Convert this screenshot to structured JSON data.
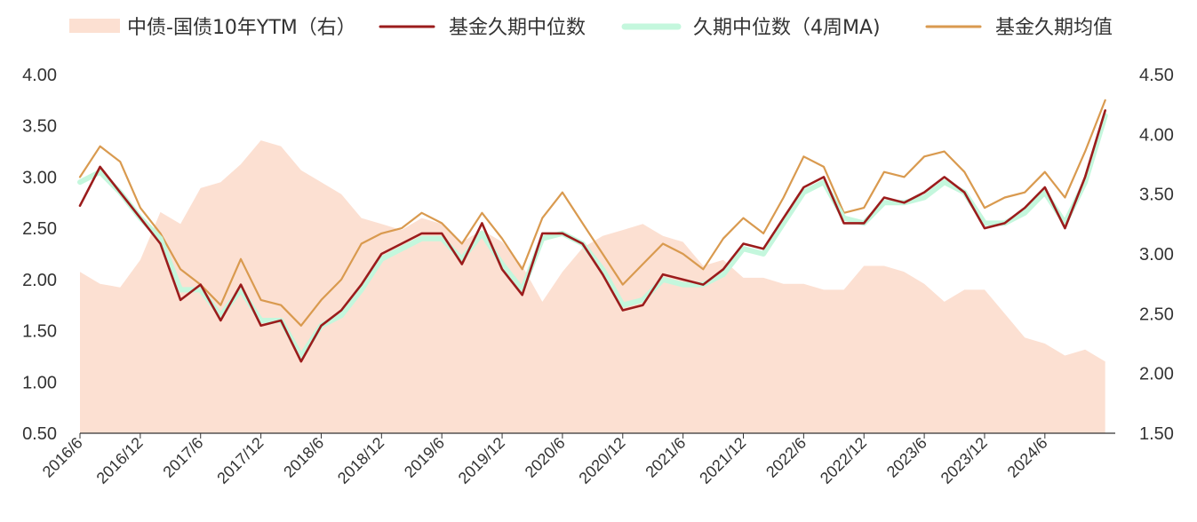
{
  "chart_data": {
    "type": "line",
    "title": "",
    "xlabel": "",
    "ylabel_left": "",
    "ylabel_right": "",
    "ylim_left": [
      0.5,
      4.0
    ],
    "ylim_right": [
      1.5,
      4.5
    ],
    "yticks_left": [
      "4.00",
      "3.50",
      "3.00",
      "2.50",
      "2.00",
      "1.50",
      "1.00",
      "0.50"
    ],
    "yticks_right": [
      "4.50",
      "4.00",
      "3.50",
      "3.00",
      "2.50",
      "2.00",
      "1.50"
    ],
    "x_categories": [
      "2016/6",
      "2016/12",
      "2017/6",
      "2017/12",
      "2018/6",
      "2018/12",
      "2019/6",
      "2019/12",
      "2020/6",
      "2020/12",
      "2021/6",
      "2021/12",
      "2022/6",
      "2022/12",
      "2023/6",
      "2023/12",
      "2024/6"
    ],
    "x_range": [
      "2016/6",
      "2025/1"
    ],
    "legend_position": "top",
    "grid": false,
    "series": [
      {
        "name": "中债-国债10年YTM（右）",
        "kind": "area",
        "axis": "right",
        "color": "#fce0d2",
        "x": [
          "2016/6",
          "2016/8",
          "2016/10",
          "2016/12",
          "2017/2",
          "2017/4",
          "2017/6",
          "2017/8",
          "2017/10",
          "2017/12",
          "2018/2",
          "2018/4",
          "2018/6",
          "2018/8",
          "2018/10",
          "2018/12",
          "2019/2",
          "2019/4",
          "2019/6",
          "2019/8",
          "2019/10",
          "2019/12",
          "2020/2",
          "2020/4",
          "2020/6",
          "2020/8",
          "2020/10",
          "2020/12",
          "2021/2",
          "2021/4",
          "2021/6",
          "2021/8",
          "2021/10",
          "2021/12",
          "2022/2",
          "2022/4",
          "2022/6",
          "2022/8",
          "2022/10",
          "2022/12",
          "2023/2",
          "2023/4",
          "2023/6",
          "2023/8",
          "2023/10",
          "2023/12",
          "2024/2",
          "2024/4",
          "2024/6",
          "2024/8",
          "2024/10",
          "2024/12"
        ],
        "values": [
          2.85,
          2.75,
          2.72,
          2.95,
          3.35,
          3.25,
          3.55,
          3.6,
          3.75,
          3.95,
          3.9,
          3.7,
          3.6,
          3.5,
          3.3,
          3.25,
          3.2,
          3.3,
          3.25,
          3.1,
          3.2,
          3.1,
          2.9,
          2.6,
          2.85,
          3.05,
          3.15,
          3.2,
          3.25,
          3.15,
          3.1,
          2.9,
          2.95,
          2.8,
          2.8,
          2.75,
          2.75,
          2.7,
          2.7,
          2.9,
          2.9,
          2.85,
          2.75,
          2.6,
          2.7,
          2.7,
          2.5,
          2.3,
          2.25,
          2.15,
          2.2,
          2.1
        ]
      },
      {
        "name": "基金久期中位数",
        "kind": "line",
        "axis": "left",
        "color": "#9b1c1c",
        "x": [
          "2016/6",
          "2016/8",
          "2016/10",
          "2016/12",
          "2017/2",
          "2017/4",
          "2017/6",
          "2017/8",
          "2017/10",
          "2017/12",
          "2018/2",
          "2018/4",
          "2018/6",
          "2018/8",
          "2018/10",
          "2018/12",
          "2019/2",
          "2019/4",
          "2019/6",
          "2019/8",
          "2019/10",
          "2019/12",
          "2020/2",
          "2020/4",
          "2020/6",
          "2020/8",
          "2020/10",
          "2020/12",
          "2021/2",
          "2021/4",
          "2021/6",
          "2021/8",
          "2021/10",
          "2021/12",
          "2022/2",
          "2022/4",
          "2022/6",
          "2022/8",
          "2022/10",
          "2022/12",
          "2023/2",
          "2023/4",
          "2023/6",
          "2023/8",
          "2023/10",
          "2023/12",
          "2024/2",
          "2024/4",
          "2024/6",
          "2024/8",
          "2024/10",
          "2024/12"
        ],
        "values": [
          2.72,
          3.1,
          2.85,
          2.6,
          2.35,
          1.8,
          1.95,
          1.6,
          1.95,
          1.55,
          1.6,
          1.2,
          1.55,
          1.7,
          1.95,
          2.25,
          2.35,
          2.45,
          2.45,
          2.15,
          2.55,
          2.1,
          1.85,
          2.45,
          2.45,
          2.35,
          2.05,
          1.7,
          1.75,
          2.05,
          2.0,
          1.95,
          2.1,
          2.35,
          2.3,
          2.6,
          2.9,
          3.0,
          2.55,
          2.55,
          2.8,
          2.75,
          2.85,
          3.0,
          2.85,
          2.5,
          2.55,
          2.7,
          2.9,
          2.5,
          3.0,
          3.65
        ]
      },
      {
        "name": "久期中位数（4周MA)",
        "kind": "line",
        "axis": "left",
        "color": "#c4f7dd",
        "x": [
          "2016/6",
          "2016/8",
          "2016/10",
          "2016/12",
          "2017/2",
          "2017/4",
          "2017/6",
          "2017/8",
          "2017/10",
          "2017/12",
          "2018/2",
          "2018/4",
          "2018/6",
          "2018/8",
          "2018/10",
          "2018/12",
          "2019/2",
          "2019/4",
          "2019/6",
          "2019/8",
          "2019/10",
          "2019/12",
          "2020/2",
          "2020/4",
          "2020/6",
          "2020/8",
          "2020/10",
          "2020/12",
          "2021/2",
          "2021/4",
          "2021/6",
          "2021/8",
          "2021/10",
          "2021/12",
          "2022/2",
          "2022/4",
          "2022/6",
          "2022/8",
          "2022/10",
          "2022/12",
          "2023/2",
          "2023/4",
          "2023/6",
          "2023/8",
          "2023/10",
          "2023/12",
          "2024/2",
          "2024/4",
          "2024/6",
          "2024/8",
          "2024/10",
          "2024/12"
        ],
        "values": [
          2.95,
          3.05,
          2.85,
          2.6,
          2.4,
          1.9,
          1.9,
          1.65,
          1.9,
          1.6,
          1.6,
          1.25,
          1.55,
          1.65,
          1.9,
          2.2,
          2.3,
          2.4,
          2.4,
          2.2,
          2.45,
          2.15,
          1.9,
          2.4,
          2.45,
          2.35,
          2.1,
          1.75,
          1.8,
          2.0,
          1.95,
          1.95,
          2.05,
          2.3,
          2.25,
          2.55,
          2.85,
          2.95,
          2.6,
          2.55,
          2.75,
          2.75,
          2.8,
          2.95,
          2.85,
          2.55,
          2.55,
          2.65,
          2.85,
          2.55,
          2.95,
          3.6
        ]
      },
      {
        "name": "基金久期均值",
        "kind": "line",
        "axis": "left",
        "color": "#d99a4f",
        "x": [
          "2016/6",
          "2016/8",
          "2016/10",
          "2016/12",
          "2017/2",
          "2017/4",
          "2017/6",
          "2017/8",
          "2017/10",
          "2017/12",
          "2018/2",
          "2018/4",
          "2018/6",
          "2018/8",
          "2018/10",
          "2018/12",
          "2019/2",
          "2019/4",
          "2019/6",
          "2019/8",
          "2019/10",
          "2019/12",
          "2020/2",
          "2020/4",
          "2020/6",
          "2020/8",
          "2020/10",
          "2020/12",
          "2021/2",
          "2021/4",
          "2021/6",
          "2021/8",
          "2021/10",
          "2021/12",
          "2022/2",
          "2022/4",
          "2022/6",
          "2022/8",
          "2022/10",
          "2022/12",
          "2023/2",
          "2023/4",
          "2023/6",
          "2023/8",
          "2023/10",
          "2023/12",
          "2024/2",
          "2024/4",
          "2024/6",
          "2024/8",
          "2024/10",
          "2024/12"
        ],
        "values": [
          3.0,
          3.3,
          3.15,
          2.7,
          2.45,
          2.1,
          1.95,
          1.75,
          2.2,
          1.8,
          1.75,
          1.55,
          1.8,
          2.0,
          2.35,
          2.45,
          2.5,
          2.65,
          2.55,
          2.35,
          2.65,
          2.4,
          2.1,
          2.6,
          2.85,
          2.55,
          2.25,
          1.95,
          2.15,
          2.35,
          2.25,
          2.1,
          2.4,
          2.6,
          2.45,
          2.8,
          3.2,
          3.1,
          2.65,
          2.7,
          3.05,
          3.0,
          3.2,
          3.25,
          3.05,
          2.7,
          2.8,
          2.85,
          3.05,
          2.8,
          3.25,
          3.75
        ]
      }
    ]
  }
}
